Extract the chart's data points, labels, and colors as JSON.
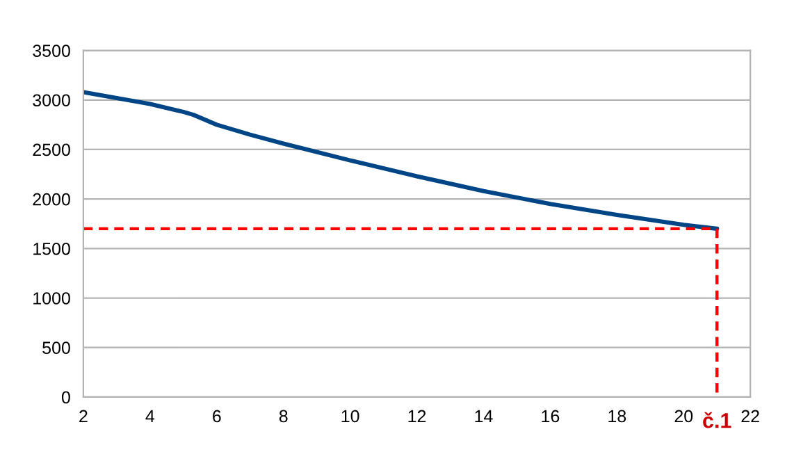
{
  "chart_data": {
    "type": "line",
    "xlim": [
      2,
      22
    ],
    "xticks": [
      2,
      4,
      6,
      8,
      10,
      12,
      14,
      16,
      18,
      20,
      22
    ],
    "ylim": [
      0,
      3500
    ],
    "yticks": [
      0,
      500,
      1000,
      1500,
      2000,
      2500,
      3000,
      3500
    ],
    "grid": "y",
    "legend": false,
    "series": [
      {
        "color": "#004586",
        "line_style": "solid",
        "x": [
          2,
          3,
          4,
          5,
          5.3,
          6,
          7,
          8,
          10,
          12,
          14,
          16,
          18,
          20,
          21
        ],
        "values": [
          3080,
          3020,
          2960,
          2880,
          2850,
          2750,
          2650,
          2560,
          2390,
          2230,
          2080,
          1950,
          1840,
          1740,
          1700
        ]
      },
      {
        "color": "#ff0000",
        "line_style": "dashed",
        "x": [
          2,
          21
        ],
        "values": [
          1700,
          1700
        ]
      },
      {
        "color": "#ff0000",
        "line_style": "dashed",
        "x": [
          21,
          21
        ],
        "values": [
          1700,
          0
        ]
      }
    ],
    "annotations": [
      {
        "text": "č.1",
        "x": 21,
        "y": 0
      }
    ]
  }
}
